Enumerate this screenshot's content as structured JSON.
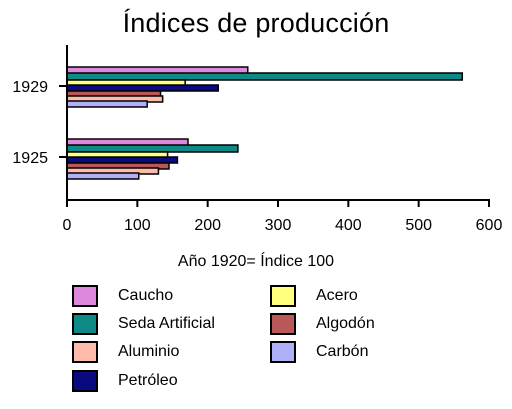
{
  "chart_data": {
    "type": "bar",
    "orientation": "horizontal",
    "title": "Índices de producción",
    "xlabel": "Año 1920= Índice 100",
    "ylabel": "",
    "xlim": [
      0,
      600
    ],
    "xticks": [
      "0",
      "100",
      "200",
      "300",
      "400",
      "500",
      "600"
    ],
    "categories": [
      "1929",
      "1925"
    ],
    "series": [
      {
        "name": "Caucho",
        "color": "#dd88dd",
        "values": [
          257,
          172
        ]
      },
      {
        "name": "Seda Artificial",
        "color": "#0d8a85",
        "values": [
          562,
          243
        ]
      },
      {
        "name": "Acero",
        "color": "#ffff80",
        "values": [
          168,
          143
        ]
      },
      {
        "name": "Petróleo",
        "color": "#0a0a80",
        "values": [
          215,
          157
        ]
      },
      {
        "name": "Algodón",
        "color": "#b85858",
        "values": [
          133,
          145
        ]
      },
      {
        "name": "Aluminio",
        "color": "#ffbbaa",
        "values": [
          136,
          130
        ]
      },
      {
        "name": "Carbón",
        "color": "#b0b0f8",
        "values": [
          114,
          102
        ]
      }
    ],
    "grid": false,
    "legend_position": "bottom"
  }
}
